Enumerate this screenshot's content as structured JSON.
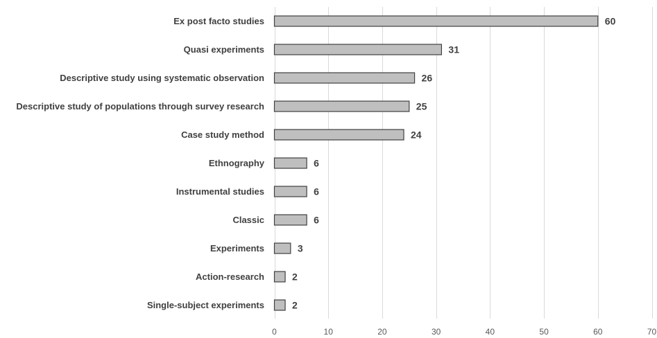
{
  "chart_data": {
    "type": "bar",
    "orientation": "horizontal",
    "categories": [
      "Ex post facto studies",
      "Quasi experiments",
      "Descriptive study using systematic observation",
      "Descriptive study of populations through survey research",
      "Case study method",
      "Ethnography",
      "Instrumental studies",
      "Classic",
      "Experiments",
      "Action-research",
      "Single-subject experiments"
    ],
    "values": [
      60,
      31,
      26,
      25,
      24,
      6,
      6,
      6,
      3,
      2,
      2
    ],
    "title": "",
    "xlabel": "",
    "ylabel": "",
    "xlim": [
      0,
      70
    ],
    "xticks": [
      0,
      10,
      20,
      30,
      40,
      50,
      60,
      70
    ],
    "grid": "vertical",
    "data_labels": true,
    "colors": {
      "bar_fill": "#bfbfbf",
      "bar_stroke": "#404040",
      "gridline": "#d9d9d9",
      "text": "#404040"
    }
  }
}
